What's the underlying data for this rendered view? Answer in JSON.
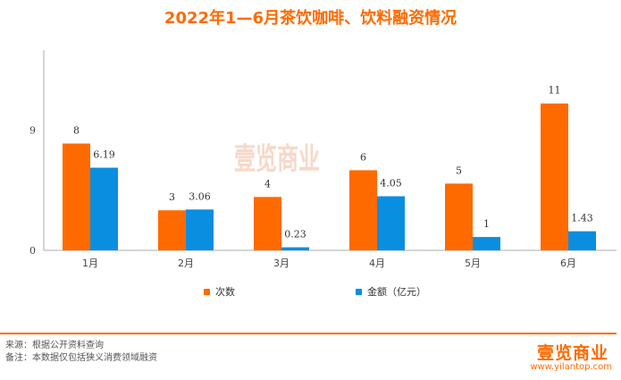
{
  "title": "2022年1—6月茶饮咖啡、饮料融资情况",
  "chart_data": {
    "type": "bar",
    "title": "2022年1—6月茶饮咖啡、饮料融资情况",
    "categories": [
      "1月",
      "2月",
      "3月",
      "4月",
      "5月",
      "6月"
    ],
    "series": [
      {
        "name": "次数",
        "values": [
          8,
          3,
          4,
          6,
          5,
          11
        ],
        "labels": [
          "8",
          "3",
          "4",
          "6",
          "5",
          "11"
        ],
        "color": "#ff6a00"
      },
      {
        "name": "金额（亿元）",
        "values": [
          6.19,
          3.06,
          0.23,
          4.05,
          1,
          1.43
        ],
        "labels": [
          "6.19",
          "3.06",
          "0.23",
          "4.05",
          "1",
          "1.43"
        ],
        "color": "#0a8ee0"
      }
    ],
    "yticks": [
      "0",
      "9"
    ],
    "ylim": [
      0,
      15
    ],
    "legend": "bottom",
    "grid": false
  },
  "watermark": "壹览商业",
  "footer": {
    "source": "来源：根据公开资料查询",
    "note": "备注：本数据仅包括狭义消费领域融资",
    "logo": "壹览商业",
    "url": "www.yilantop.com"
  }
}
